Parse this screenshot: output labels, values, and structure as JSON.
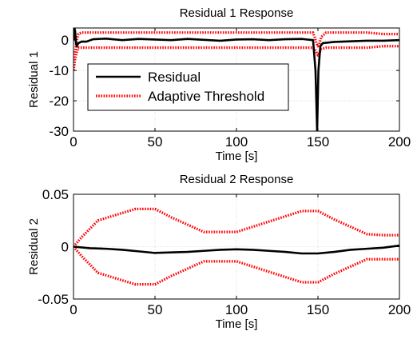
{
  "chart_data": [
    {
      "type": "line",
      "title": "Residual 1 Response",
      "xlabel": "Time [s]",
      "ylabel": "Residual 1",
      "xlim": [
        0,
        200
      ],
      "ylim": [
        -30,
        4
      ],
      "xticks": [
        "0",
        "50",
        "100",
        "150",
        "200"
      ],
      "yticks": [
        "0",
        "-10",
        "-20",
        "-30"
      ],
      "grid": true,
      "legend": {
        "placement": "upper-left",
        "entries": [
          "Residual",
          "Adaptive Threshold"
        ]
      },
      "series": [
        {
          "name": "Residual",
          "color": "#000000",
          "style": "solid",
          "x": [
            0,
            0.5,
            1,
            1.5,
            2,
            3,
            5,
            8,
            12,
            20,
            30,
            40,
            50,
            60,
            70,
            80,
            90,
            100,
            110,
            120,
            130,
            140,
            147,
            148.5,
            149.5,
            150.3,
            151.5,
            153,
            160,
            170,
            180,
            190,
            200
          ],
          "y": [
            0,
            4,
            3,
            -1,
            -2,
            -1,
            -0.5,
            -0.5,
            0.3,
            0.5,
            0,
            0.4,
            0.2,
            0,
            0.4,
            0.1,
            -0.2,
            0.2,
            0.3,
            0,
            0.3,
            0.4,
            0,
            -10,
            -30,
            -10,
            -2,
            -1,
            -0.6,
            -0.4,
            -0.2,
            -0.2,
            0
          ]
        },
        {
          "name": "Adaptive Threshold",
          "color": "#ff0000",
          "style": "dotted",
          "x": [
            0,
            0.5,
            1,
            1.5,
            2,
            3,
            5,
            10,
            20,
            40,
            60,
            80,
            100,
            120,
            140,
            147,
            148,
            149,
            150,
            151,
            152,
            155,
            160,
            180,
            190,
            200
          ],
          "y": [
            -10,
            -8,
            -4,
            -2,
            0,
            2,
            2.5,
            2.5,
            2.5,
            2.5,
            2.5,
            2.5,
            2.5,
            2.5,
            2.5,
            2.5,
            1,
            -1,
            -2,
            -1,
            1,
            2.5,
            2.5,
            2.5,
            2,
            2
          ]
        },
        {
          "name": "Adaptive Threshold",
          "color": "#ff0000",
          "style": "dotted",
          "x": [
            0,
            0.5,
            1,
            2,
            3,
            5,
            10,
            20,
            40,
            60,
            80,
            100,
            120,
            140,
            147,
            148,
            149,
            150,
            151,
            152,
            155,
            160,
            180,
            190,
            200
          ],
          "y": [
            -10,
            -8,
            -6,
            -4,
            -2.5,
            -2.5,
            -2.5,
            -2.5,
            -2.5,
            -2.5,
            -2.5,
            -2.5,
            -2.5,
            -2.5,
            -2.5,
            -3,
            -4,
            -5,
            -4,
            -3,
            -2.5,
            -2.5,
            -2.5,
            -2,
            -2
          ]
        }
      ]
    },
    {
      "type": "line",
      "title": "Residual 2 Response",
      "xlabel": "Time [s]",
      "ylabel": "Residual 2",
      "xlim": [
        0,
        200
      ],
      "ylim": [
        -0.05,
        0.05
      ],
      "xticks": [
        "0",
        "50",
        "100",
        "150",
        "200"
      ],
      "yticks": [
        "0.05",
        "0",
        "-0.05"
      ],
      "grid": true,
      "series": [
        {
          "name": "Residual",
          "color": "#000000",
          "style": "solid",
          "x": [
            0,
            10,
            20,
            30,
            40,
            50,
            60,
            70,
            80,
            90,
            100,
            110,
            120,
            130,
            140,
            150,
            160,
            170,
            180,
            190,
            200
          ],
          "y": [
            0,
            -0.0015,
            -0.002,
            -0.003,
            -0.0045,
            -0.006,
            -0.0055,
            -0.005,
            -0.004,
            -0.003,
            -0.0025,
            -0.003,
            -0.004,
            -0.005,
            -0.0065,
            -0.0065,
            -0.005,
            -0.003,
            -0.002,
            -0.001,
            0.001
          ]
        },
        {
          "name": "Adaptive Threshold",
          "color": "#ff0000",
          "style": "dotted",
          "x": [
            0,
            5,
            15,
            38,
            50,
            60,
            80,
            100,
            120,
            140,
            150,
            160,
            180,
            190,
            200
          ],
          "y": [
            0,
            0.009,
            0.025,
            0.036,
            0.036,
            0.028,
            0.014,
            0.014,
            0.024,
            0.034,
            0.034,
            0.026,
            0.012,
            0.011,
            0.011
          ]
        },
        {
          "name": "Adaptive Threshold",
          "color": "#ff0000",
          "style": "dotted",
          "x": [
            0,
            5,
            15,
            38,
            50,
            60,
            80,
            100,
            120,
            140,
            150,
            160,
            180,
            190,
            200
          ],
          "y": [
            0,
            -0.009,
            -0.025,
            -0.036,
            -0.036,
            -0.028,
            -0.014,
            -0.014,
            -0.024,
            -0.034,
            -0.034,
            -0.026,
            -0.012,
            -0.012,
            -0.012
          ]
        }
      ]
    }
  ]
}
